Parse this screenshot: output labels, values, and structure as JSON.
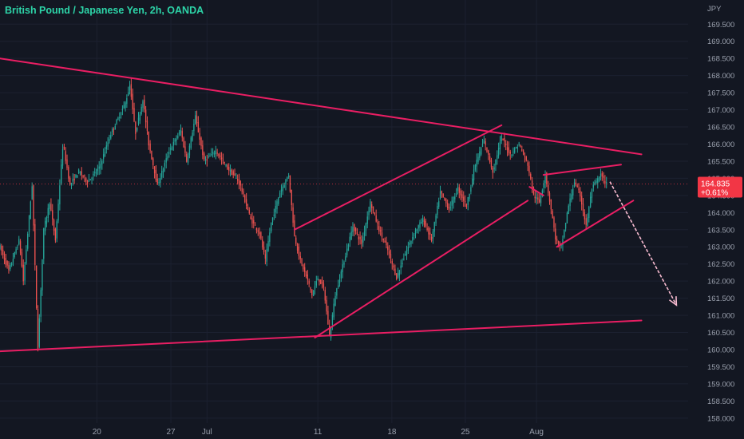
{
  "header": {
    "title": "British Pound / Japanese Yen, 2h, OANDA"
  },
  "colors": {
    "background": "#131722",
    "grid": "#1c2130",
    "axis_text": "#9aa0ad",
    "up": "#26a69a",
    "down": "#ef5350",
    "trendline": "#e91e63",
    "arrow": "#f8bbd0",
    "price_tag": "#f23645"
  },
  "chart_data": {
    "type": "candlestick",
    "title": "British Pound / Japanese Yen, 2h, OANDA",
    "currency_label": "JPY",
    "y_ticks": [
      158,
      158.5,
      159,
      159.5,
      160,
      160.5,
      161,
      161.5,
      162,
      162.5,
      163,
      163.5,
      164,
      164.5,
      165,
      165.5,
      166,
      166.5,
      167,
      167.5,
      168,
      168.5,
      169,
      169.5
    ],
    "y_tick_labels": [
      "158.000",
      "158.500",
      "159.000",
      "159.500",
      "160.000",
      "160.500",
      "161.000",
      "161.500",
      "162.000",
      "162.500",
      "163.000",
      "163.500",
      "164.000",
      "164.500",
      "165.000",
      "165.500",
      "166.000",
      "166.500",
      "167.000",
      "167.500",
      "168.000",
      "168.500",
      "169.000",
      "169.500"
    ],
    "ylim": [
      158,
      170
    ],
    "x_ticks": [
      {
        "label": "20",
        "t": 16.6
      },
      {
        "label": "27",
        "t": 29.3
      },
      {
        "label": "Jul",
        "t": 35.5
      },
      {
        "label": "11",
        "t": 54.5
      },
      {
        "label": "18",
        "t": 67.2
      },
      {
        "label": "25",
        "t": 79.8
      },
      {
        "label": "Aug",
        "t": 92.0
      }
    ],
    "current_price": {
      "value": 164.835,
      "label": "164.835",
      "change": "+0.61%"
    },
    "price_path": [
      [
        0,
        163.0
      ],
      [
        1.5,
        162.3
      ],
      [
        3.3,
        163.2
      ],
      [
        4,
        162.0
      ],
      [
        5.5,
        164.8
      ],
      [
        6.5,
        160.05
      ],
      [
        7.5,
        163.5
      ],
      [
        8.5,
        164.3
      ],
      [
        9.5,
        163.2
      ],
      [
        10.8,
        166.0
      ],
      [
        12,
        164.8
      ],
      [
        13.5,
        165.2
      ],
      [
        15,
        164.9
      ],
      [
        17,
        165.3
      ],
      [
        19,
        166.3
      ],
      [
        21.5,
        167.2
      ],
      [
        22.3,
        167.75
      ],
      [
        23.2,
        166.3
      ],
      [
        24.5,
        167.3
      ],
      [
        25.5,
        166.0
      ],
      [
        27,
        164.8
      ],
      [
        29,
        165.8
      ],
      [
        31,
        166.4
      ],
      [
        32,
        165.5
      ],
      [
        33.5,
        166.8
      ],
      [
        35,
        165.5
      ],
      [
        37,
        165.8
      ],
      [
        39,
        165.3
      ],
      [
        41,
        164.9
      ],
      [
        43,
        163.8
      ],
      [
        44.5,
        163.4
      ],
      [
        45.5,
        162.6
      ],
      [
        46.5,
        163.7
      ],
      [
        48,
        164.6
      ],
      [
        49.5,
        165.1
      ],
      [
        50.5,
        163.3
      ],
      [
        51.5,
        162.6
      ],
      [
        52.8,
        162.0
      ],
      [
        53.5,
        161.6
      ],
      [
        54.5,
        162.1
      ],
      [
        55.5,
        161.8
      ],
      [
        56.5,
        160.4
      ],
      [
        57.5,
        161.6
      ],
      [
        59,
        162.6
      ],
      [
        60.5,
        163.6
      ],
      [
        62,
        163.1
      ],
      [
        63.5,
        164.3
      ],
      [
        65,
        163.5
      ],
      [
        66.5,
        162.9
      ],
      [
        68,
        162.1
      ],
      [
        69.5,
        162.8
      ],
      [
        71,
        163.4
      ],
      [
        72.5,
        163.8
      ],
      [
        74,
        163.2
      ],
      [
        75.5,
        164.6
      ],
      [
        77,
        164.1
      ],
      [
        78.5,
        164.7
      ],
      [
        80,
        164.2
      ],
      [
        81.5,
        165.4
      ],
      [
        83,
        166.1
      ],
      [
        84.5,
        165.2
      ],
      [
        86,
        166.2
      ],
      [
        87.5,
        165.7
      ],
      [
        89,
        166.0
      ],
      [
        90.5,
        165.4
      ],
      [
        91.5,
        164.5
      ],
      [
        92.5,
        164.3
      ],
      [
        93.5,
        165.1
      ],
      [
        94.5,
        164.1
      ],
      [
        95.3,
        163.2
      ],
      [
        96.2,
        162.95
      ],
      [
        97.5,
        164.2
      ],
      [
        98.5,
        164.9
      ],
      [
        99.5,
        164.5
      ],
      [
        100.5,
        163.6
      ],
      [
        101.5,
        164.7
      ],
      [
        103,
        165.1
      ],
      [
        104,
        164.83
      ]
    ],
    "trendlines": [
      {
        "name": "upper-wedge-line",
        "from": [
          0,
          168.5
        ],
        "to": [
          110,
          165.7
        ]
      },
      {
        "name": "lower-wedge-line",
        "from": [
          0,
          159.95
        ],
        "to": [
          110,
          160.85
        ]
      },
      {
        "name": "channel-top-line",
        "from": [
          50.5,
          163.5
        ],
        "to": [
          86,
          166.55
        ]
      },
      {
        "name": "channel-bottom-line",
        "from": [
          54,
          160.35
        ],
        "to": [
          90.5,
          164.35
        ]
      },
      {
        "name": "flag-top-line",
        "from": [
          93.2,
          165.1
        ],
        "to": [
          106.5,
          165.4
        ]
      },
      {
        "name": "flag-bottom-line",
        "from": [
          95.5,
          163.0
        ],
        "to": [
          108.6,
          164.35
        ]
      },
      {
        "name": "flag-left-line",
        "from": [
          90.8,
          164.75
        ],
        "to": [
          93.2,
          164.5
        ]
      }
    ],
    "projection_arrow": {
      "from": [
        104.6,
        164.9
      ],
      "to": [
        116,
        161.3
      ]
    },
    "grid": false,
    "legend": "none"
  }
}
